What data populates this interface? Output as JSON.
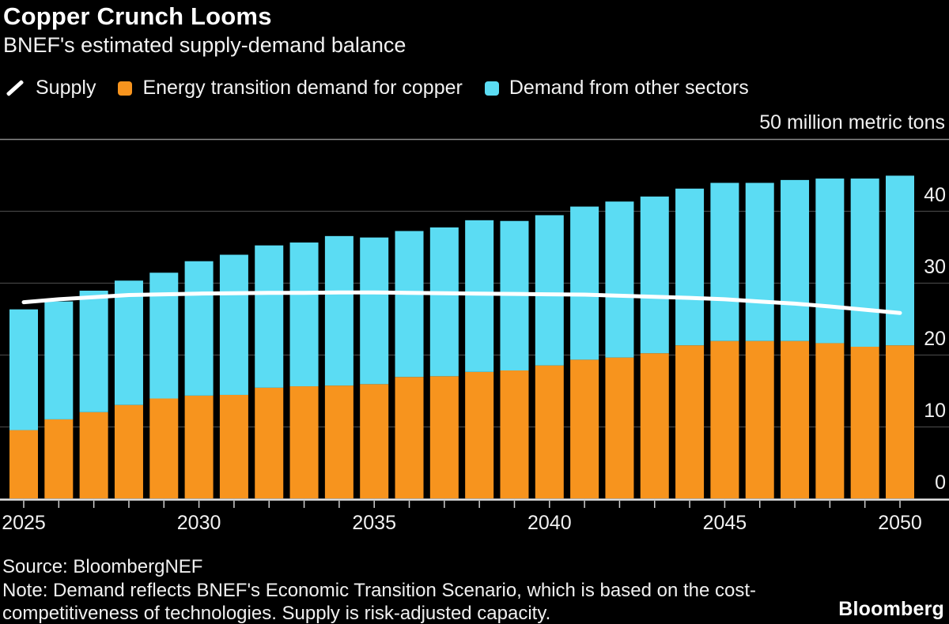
{
  "header": {
    "title": "Copper Crunch Looms",
    "subtitle": "BNEF's estimated supply-demand balance"
  },
  "legend": [
    {
      "label": "Supply",
      "icon": "line",
      "color": "#ffffff"
    },
    {
      "label": "Energy transition demand for copper",
      "icon": "square",
      "color": "#f7941e"
    },
    {
      "label": "Demand from other sectors",
      "icon": "square",
      "color": "#5bdcf3"
    }
  ],
  "chart_data": {
    "type": "bar",
    "stacked": true,
    "title": "Copper Crunch Looms",
    "subtitle": "BNEF's estimated supply-demand balance",
    "ylabel": "50 million metric tons",
    "ylim": [
      0,
      50
    ],
    "ygrid": [
      0,
      10,
      20,
      30,
      40,
      50
    ],
    "ytick_labels": [
      "0",
      "10",
      "20",
      "30",
      "40"
    ],
    "grid": true,
    "legend_position": "top",
    "x": [
      2025,
      2026,
      2027,
      2028,
      2029,
      2030,
      2031,
      2032,
      2033,
      2034,
      2035,
      2036,
      2037,
      2038,
      2039,
      2040,
      2041,
      2042,
      2043,
      2044,
      2045,
      2046,
      2047,
      2048,
      2049,
      2050
    ],
    "xtick_labels": [
      "2025",
      "2030",
      "2035",
      "2040",
      "2045",
      "2050"
    ],
    "series": [
      {
        "name": "Energy transition demand for copper",
        "type": "bar",
        "color": "#f7941e",
        "values": [
          9.5,
          11.0,
          12.0,
          13.0,
          13.9,
          14.3,
          14.4,
          15.4,
          15.6,
          15.7,
          15.9,
          16.9,
          17.0,
          17.6,
          17.8,
          18.5,
          19.3,
          19.6,
          20.2,
          21.3,
          21.9,
          21.9,
          21.9,
          21.6,
          21.1,
          21.3
        ]
      },
      {
        "name": "Demand from other sectors",
        "type": "bar",
        "color": "#5bdcf3",
        "values": [
          16.8,
          16.4,
          16.9,
          17.3,
          17.5,
          18.7,
          19.5,
          19.8,
          20.0,
          20.8,
          20.4,
          20.3,
          20.7,
          21.1,
          20.8,
          20.9,
          21.3,
          21.7,
          21.8,
          21.8,
          22.0,
          22.0,
          22.4,
          22.9,
          23.4,
          23.6
        ]
      },
      {
        "name": "Supply",
        "type": "line",
        "color": "#ffffff",
        "values": [
          27.3,
          27.7,
          28.0,
          28.3,
          28.4,
          28.5,
          28.55,
          28.6,
          28.6,
          28.65,
          28.65,
          28.6,
          28.55,
          28.5,
          28.45,
          28.4,
          28.35,
          28.2,
          28.05,
          27.9,
          27.7,
          27.4,
          27.1,
          26.7,
          26.25,
          25.8
        ]
      }
    ],
    "colors": {
      "background": "#000000",
      "gridline": "#434343",
      "top_gridline": "#8a8a8a",
      "baseline": "#e6e6e6",
      "tick": "#cfcfcf",
      "text": "#f1f1f1"
    }
  },
  "footer": {
    "source": "Source: BloombergNEF",
    "note_line1": "Note: Demand reflects BNEF's Economic Transition Scenario, which is based on the cost-",
    "note_line2": "competitiveness of technologies. Supply is risk-adjusted capacity.",
    "brand": "Bloomberg"
  }
}
